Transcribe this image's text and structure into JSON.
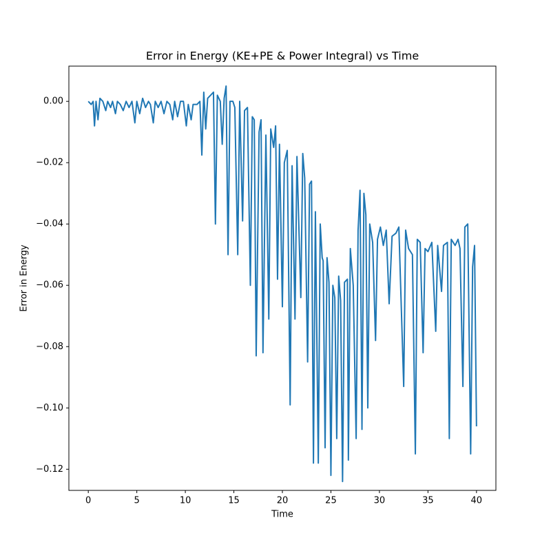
{
  "chart_data": {
    "type": "line",
    "title": "Error in Energy (KE+PE & Power Integral) vs Time",
    "x_label": "Time",
    "y_label": "Error in Energy",
    "xlim": [
      -2,
      42
    ],
    "ylim": [
      -0.1269,
      0.0115
    ],
    "xticks": [
      0,
      5,
      10,
      15,
      20,
      25,
      30,
      35,
      40
    ],
    "yticks": [
      {
        "value": 0,
        "label": "0.00"
      },
      {
        "value": -0.02,
        "label": "−0.02"
      },
      {
        "value": -0.04,
        "label": "−0.04"
      },
      {
        "value": -0.06,
        "label": "−0.06"
      },
      {
        "value": -0.08,
        "label": "−0.08"
      },
      {
        "value": -0.1,
        "label": "−0.10"
      },
      {
        "value": -0.12,
        "label": "−0.12"
      }
    ],
    "x": [
      0,
      0.3,
      0.5,
      0.64,
      0.8,
      1.0,
      1.2,
      1.5,
      1.8,
      2.0,
      2.3,
      2.5,
      2.8,
      3.0,
      3.3,
      3.6,
      3.9,
      4.2,
      4.5,
      4.8,
      5.0,
      5.3,
      5.6,
      5.9,
      6.2,
      6.4,
      6.7,
      6.9,
      7.2,
      7.5,
      7.8,
      8.1,
      8.4,
      8.7,
      8.9,
      9.2,
      9.5,
      9.8,
      10.1,
      10.3,
      10.6,
      10.8,
      11.2,
      11.5,
      11.7,
      11.9,
      12.1,
      12.3,
      12.6,
      12.9,
      13.1,
      13.3,
      13.6,
      13.8,
      14.0,
      14.2,
      14.4,
      14.6,
      14.9,
      15.1,
      15.4,
      15.6,
      15.9,
      16.1,
      16.4,
      16.7,
      16.9,
      17.1,
      17.3,
      17.6,
      17.8,
      18.0,
      18.3,
      18.6,
      18.8,
      19.1,
      19.3,
      19.5,
      19.7,
      20.0,
      20.2,
      20.5,
      20.8,
      21.0,
      21.3,
      21.5,
      21.9,
      22.1,
      22.3,
      22.6,
      22.8,
      23.0,
      23.2,
      23.4,
      23.7,
      23.9,
      24.1,
      24.2,
      24.4,
      24.6,
      24.8,
      25.0,
      25.2,
      25.4,
      25.6,
      25.8,
      26.0,
      26.2,
      26.4,
      26.7,
      26.8,
      27.0,
      27.3,
      27.6,
      27.8,
      28.0,
      28.2,
      28.4,
      28.6,
      28.8,
      29.0,
      29.3,
      29.6,
      29.8,
      30.1,
      30.4,
      30.7,
      31.0,
      31.3,
      31.7,
      32.0,
      32.5,
      32.7,
      33.0,
      33.4,
      33.7,
      33.9,
      34.2,
      34.5,
      34.7,
      35.0,
      35.4,
      35.8,
      36.0,
      36.4,
      36.6,
      37.0,
      37.2,
      37.4,
      37.8,
      38.1,
      38.3,
      38.6,
      38.8,
      39.1,
      39.4,
      39.6,
      39.8,
      40.0
    ],
    "series": [
      {
        "color": "#1f77b4",
        "values": [
          0,
          -0.001,
          0.0,
          -0.008,
          0.0,
          -0.006,
          0.001,
          0.0,
          -0.003,
          0.0,
          -0.002,
          0.0,
          -0.004,
          0.0,
          -0.001,
          -0.003,
          0.0,
          -0.002,
          0.0,
          -0.007,
          0.0,
          -0.004,
          0.001,
          -0.002,
          0.0,
          -0.001,
          -0.007,
          0.0,
          -0.002,
          0.0,
          -0.004,
          0.0,
          -0.001,
          -0.006,
          0.0,
          -0.005,
          0.0,
          0.0,
          -0.008,
          -0.001,
          -0.006,
          -0.001,
          -0.001,
          0.0,
          -0.0175,
          0.003,
          -0.009,
          0.001,
          0.002,
          0.003,
          -0.04,
          0.002,
          0.0,
          -0.014,
          0.001,
          0.005,
          -0.05,
          0.0,
          0.0,
          -0.002,
          -0.05,
          0.0,
          -0.039,
          -0.003,
          -0.002,
          -0.06,
          -0.005,
          -0.006,
          -0.083,
          -0.01,
          -0.006,
          -0.082,
          -0.011,
          -0.071,
          -0.009,
          -0.015,
          -0.008,
          -0.058,
          -0.014,
          -0.067,
          -0.02,
          -0.016,
          -0.099,
          -0.021,
          -0.071,
          -0.018,
          -0.064,
          -0.017,
          -0.025,
          -0.085,
          -0.027,
          -0.026,
          -0.118,
          -0.036,
          -0.118,
          -0.04,
          -0.051,
          -0.052,
          -0.113,
          -0.051,
          -0.059,
          -0.122,
          -0.06,
          -0.064,
          -0.11,
          -0.057,
          -0.065,
          -0.124,
          -0.059,
          -0.058,
          -0.117,
          -0.048,
          -0.06,
          -0.11,
          -0.042,
          -0.029,
          -0.107,
          -0.03,
          -0.037,
          -0.1,
          -0.04,
          -0.046,
          -0.078,
          -0.045,
          -0.041,
          -0.047,
          -0.042,
          -0.066,
          -0.044,
          -0.043,
          -0.041,
          -0.093,
          -0.042,
          -0.048,
          -0.05,
          -0.115,
          -0.045,
          -0.046,
          -0.082,
          -0.048,
          -0.049,
          -0.046,
          -0.075,
          -0.047,
          -0.062,
          -0.047,
          -0.046,
          -0.11,
          -0.045,
          -0.047,
          -0.045,
          -0.048,
          -0.093,
          -0.041,
          -0.04,
          -0.115,
          -0.054,
          -0.047,
          -0.106
        ]
      }
    ]
  }
}
